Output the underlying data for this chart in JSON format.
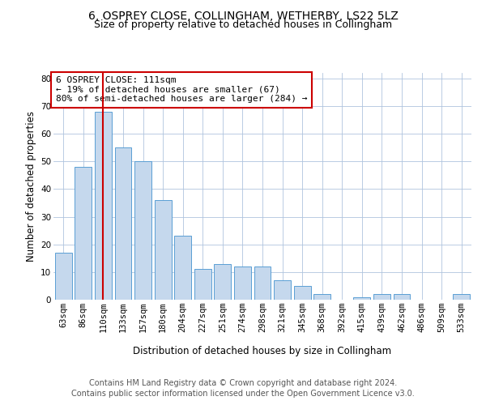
{
  "title": "6, OSPREY CLOSE, COLLINGHAM, WETHERBY, LS22 5LZ",
  "subtitle": "Size of property relative to detached houses in Collingham",
  "xlabel": "Distribution of detached houses by size in Collingham",
  "ylabel": "Number of detached properties",
  "categories": [
    "63sqm",
    "86sqm",
    "110sqm",
    "133sqm",
    "157sqm",
    "180sqm",
    "204sqm",
    "227sqm",
    "251sqm",
    "274sqm",
    "298sqm",
    "321sqm",
    "345sqm",
    "368sqm",
    "392sqm",
    "415sqm",
    "439sqm",
    "462sqm",
    "486sqm",
    "509sqm",
    "533sqm"
  ],
  "values": [
    17,
    48,
    68,
    55,
    50,
    36,
    23,
    11,
    13,
    12,
    12,
    7,
    5,
    2,
    0,
    1,
    2,
    2,
    0,
    0,
    2
  ],
  "bar_color": "#c5d8ed",
  "bar_edge_color": "#5a9fd4",
  "red_line_index": 2,
  "red_line_color": "#cc0000",
  "ylim": [
    0,
    82
  ],
  "yticks": [
    0,
    10,
    20,
    30,
    40,
    50,
    60,
    70,
    80
  ],
  "annotation_box_text": "6 OSPREY CLOSE: 111sqm\n← 19% of detached houses are smaller (67)\n80% of semi-detached houses are larger (284) →",
  "annotation_box_color": "#cc0000",
  "footer_line1": "Contains HM Land Registry data © Crown copyright and database right 2024.",
  "footer_line2": "Contains public sector information licensed under the Open Government Licence v3.0.",
  "bg_color": "#ffffff",
  "grid_color": "#b0c4de",
  "title_fontsize": 10,
  "subtitle_fontsize": 9,
  "axis_label_fontsize": 8.5,
  "tick_fontsize": 7.5,
  "annotation_fontsize": 8,
  "footer_fontsize": 7
}
